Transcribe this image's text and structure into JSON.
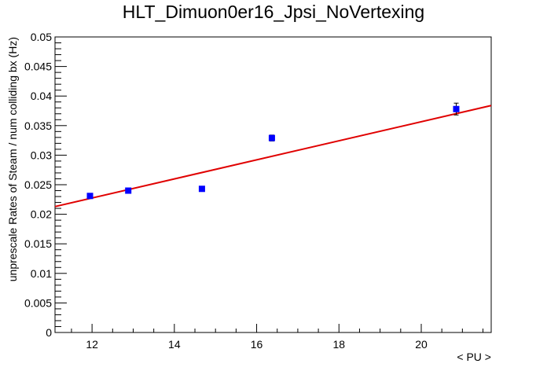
{
  "chart_data": {
    "type": "scatter",
    "title": "HLT_Dimuon0er16_Jpsi_NoVertexing",
    "xlabel": "< PU >",
    "ylabel": "unprescale Rates of Steam / num colliding bx (Hz)",
    "xlim": [
      11.1,
      21.7
    ],
    "ylim": [
      0,
      0.05
    ],
    "x_ticks": [
      12,
      14,
      16,
      18,
      20
    ],
    "x_tick_labels": [
      "12",
      "14",
      "16",
      "18",
      "20"
    ],
    "y_ticks": [
      0,
      0.005,
      0.01,
      0.015,
      0.02,
      0.025,
      0.03,
      0.035,
      0.04,
      0.045,
      0.05
    ],
    "y_tick_labels": [
      "0",
      "0.005",
      "0.01",
      "0.015",
      "0.02",
      "0.025",
      "0.03",
      "0.035",
      "0.04",
      "0.045",
      "0.05"
    ],
    "grid": false,
    "legend": "none",
    "colors": {
      "points": "#0000ff",
      "fit": "#e00000",
      "frame": "#000000"
    },
    "series": [
      {
        "type": "scatter",
        "x": [
          11.95,
          12.88,
          14.67,
          16.37,
          20.85
        ],
        "y": [
          0.0231,
          0.024,
          0.0243,
          0.0329,
          0.0378
        ],
        "yerr": [
          0.0003,
          0.0003,
          0.0003,
          0.0005,
          0.001
        ]
      },
      {
        "type": "line",
        "x": [
          11.1,
          21.7
        ],
        "y": [
          0.0213,
          0.0384
        ]
      }
    ]
  }
}
